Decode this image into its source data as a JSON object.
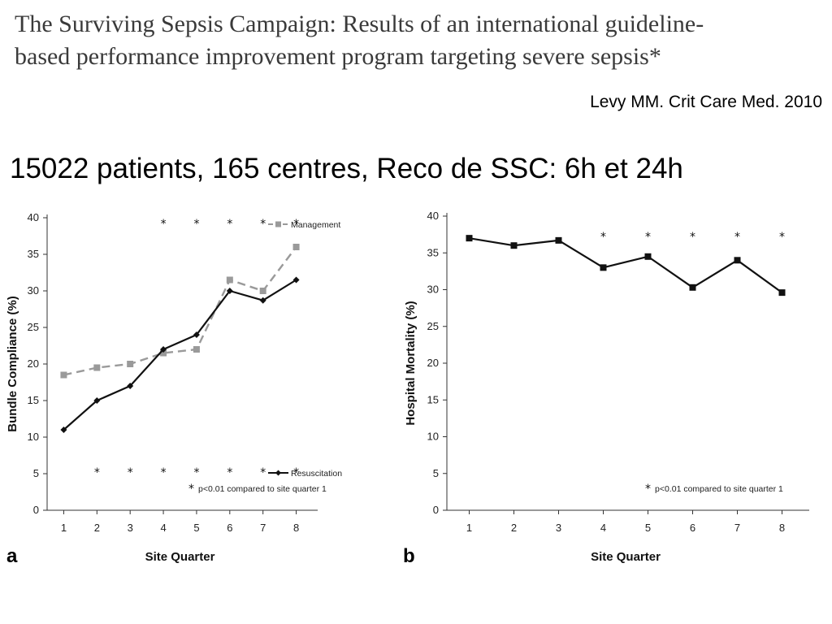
{
  "slide": {
    "paper_title_line1": "The Surviving Sepsis Campaign: Results of an international guideline-",
    "paper_title_line2": "based performance improvement program targeting severe sepsis*",
    "citation": "Levy MM. Crit Care Med. 2010",
    "headline": "15022 patients, 165 centres, Reco de SSC: 6h et 24h"
  },
  "chart_data": [
    {
      "type": "line",
      "panel_label": "a",
      "xlabel": "Site Quarter",
      "ylabel": "Bundle Compliance (%)",
      "x": [
        1,
        2,
        3,
        4,
        5,
        6,
        7,
        8
      ],
      "xlim": [
        0.5,
        8.5
      ],
      "ylim": [
        0,
        40
      ],
      "y_ticks": [
        0,
        5,
        10,
        15,
        20,
        25,
        30,
        35,
        40
      ],
      "grid": false,
      "series": [
        {
          "name": "Management",
          "values": [
            18.5,
            19.5,
            20,
            21.5,
            22,
            31.5,
            30,
            36
          ],
          "color": "#9a9a9a",
          "dashed": true,
          "marker": "square",
          "legend_position": "top-right",
          "significance_x": [
            4,
            5,
            6,
            7,
            8
          ]
        },
        {
          "name": "Resuscitation",
          "values": [
            11,
            15,
            17,
            22,
            24,
            30,
            28.7,
            31.5
          ],
          "color": "#111111",
          "dashed": false,
          "marker": "diamond",
          "legend_position": "bottom-right",
          "significance_x": [
            2,
            3,
            4,
            5,
            6,
            7,
            8
          ]
        }
      ],
      "significance_symbol": "*",
      "footnote": "p<0.01 compared to site quarter 1"
    },
    {
      "type": "line",
      "panel_label": "b",
      "xlabel": "Site Quarter",
      "ylabel": "Hospital Mortality (%)",
      "x": [
        1,
        2,
        3,
        4,
        5,
        6,
        7,
        8
      ],
      "xlim": [
        0.5,
        8.5
      ],
      "ylim": [
        0,
        40
      ],
      "y_ticks": [
        0,
        5,
        10,
        15,
        20,
        25,
        30,
        35,
        40
      ],
      "grid": false,
      "series": [
        {
          "name": "",
          "values": [
            37,
            36,
            36.7,
            33,
            34.5,
            30.3,
            34,
            29.6
          ],
          "color": "#111111",
          "dashed": false,
          "marker": "square",
          "significance_x": [
            4,
            5,
            6,
            7,
            8
          ]
        }
      ],
      "significance_symbol": "*",
      "footnote": "p<0.01 compared to site quarter 1"
    }
  ]
}
